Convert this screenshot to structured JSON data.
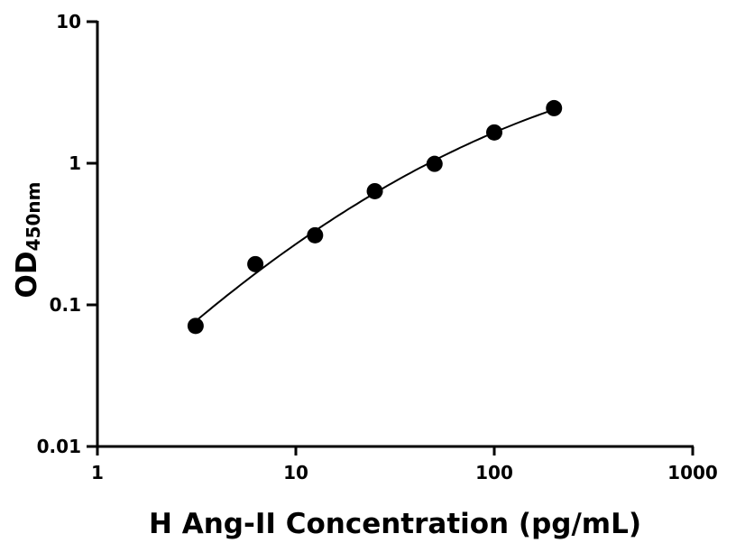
{
  "chart_data": {
    "type": "scatter",
    "title": "",
    "xlabel": "H Ang-II Concentration (pg/mL)",
    "ylabel": "OD",
    "ylabel_subscript": "450nm",
    "xscale": "log",
    "yscale": "log",
    "xlim": [
      1,
      1000
    ],
    "ylim": [
      0.01,
      10
    ],
    "xticks": [
      "1",
      "10",
      "100",
      "1000"
    ],
    "yticks": [
      "0.01",
      "0.1",
      "1",
      "10"
    ],
    "grid": false,
    "legend": "none",
    "fit_curve": true,
    "marker_color": "#000000",
    "series": [
      {
        "x": [
          3.125,
          6.25,
          12.5,
          25,
          50,
          100,
          200
        ],
        "y": [
          0.071,
          0.194,
          0.31,
          0.635,
          0.99,
          1.65,
          2.45
        ]
      }
    ]
  }
}
